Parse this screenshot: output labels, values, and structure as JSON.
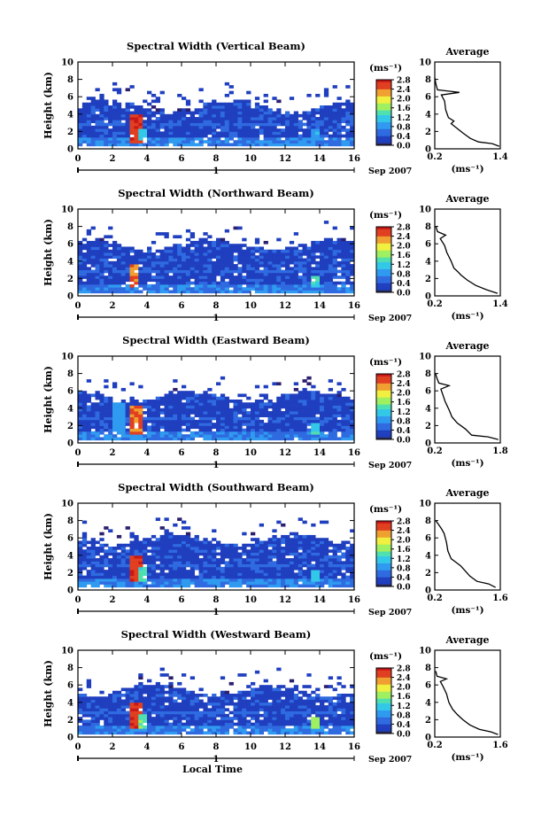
{
  "figure": {
    "x_axis_title": "Local Time",
    "date_label": "Sep 2007",
    "day_marker": "1",
    "colorbar_unit": "(ms⁻¹)",
    "average_title": "Average",
    "colors": {
      "scale": [
        "#2b1f6e",
        "#1f3fbf",
        "#2f6ae0",
        "#2f9af0",
        "#33c8e8",
        "#4fe0b0",
        "#9ff060",
        "#f0f040",
        "#f0a030",
        "#e04020",
        "#c81818"
      ],
      "low": "#2a2a55",
      "profile": "#000000"
    }
  },
  "chart_data": [
    {
      "type": "heatmap",
      "title": "Spectral Width (Vertical Beam)",
      "xlabel": "",
      "ylabel": "Height (km)",
      "xlim": [
        0,
        16
      ],
      "ylim": [
        0,
        10
      ],
      "xticks": [
        "0",
        "2",
        "4",
        "6",
        "8",
        "10",
        "12",
        "14",
        "16"
      ],
      "yticks": [
        "0",
        "2",
        "4",
        "6",
        "8",
        "10"
      ],
      "colorbar": {
        "label": "(ms⁻¹)",
        "range": [
          0.0,
          2.8
        ],
        "ticks": [
          "0.0",
          "0.4",
          "0.8",
          "1.2",
          "1.6",
          "2.0",
          "2.4",
          "2.8"
        ]
      },
      "echo_top_km": 4.5,
      "features": [
        {
          "t": 3.2,
          "z0": 0.5,
          "z1": 3.8,
          "value": 2.8
        },
        {
          "t": 3.6,
          "z0": 0.8,
          "z1": 2.0,
          "value": 1.2
        },
        {
          "t": 13.7,
          "z0": 0.8,
          "z1": 2.0,
          "value": 1.0
        }
      ],
      "average_profile": {
        "xlabel": "(ms⁻¹)",
        "xlim": [
          0.2,
          1.4
        ],
        "xticks": [
          "0.2",
          "1.4"
        ],
        "ylim": [
          0,
          10
        ],
        "yticks": [
          "0",
          "2",
          "4",
          "6",
          "8",
          "10"
        ],
        "points": [
          [
            1.38,
            0.3
          ],
          [
            1.25,
            0.6
          ],
          [
            1.0,
            0.8
          ],
          [
            0.85,
            1.2
          ],
          [
            0.72,
            1.8
          ],
          [
            0.6,
            2.4
          ],
          [
            0.5,
            2.9
          ],
          [
            0.55,
            3.2
          ],
          [
            0.45,
            3.6
          ],
          [
            0.4,
            4.5
          ],
          [
            0.38,
            5.5
          ],
          [
            0.32,
            6.2
          ],
          [
            0.65,
            6.5
          ],
          [
            0.25,
            6.8
          ],
          [
            0.22,
            7.5
          ],
          [
            0.2,
            8.2
          ]
        ]
      }
    },
    {
      "type": "heatmap",
      "title": "Spectral Width (Northward Beam)",
      "xlabel": "",
      "ylabel": "Height (km)",
      "xlim": [
        0,
        16
      ],
      "ylim": [
        0,
        10
      ],
      "xticks": [
        "0",
        "2",
        "4",
        "6",
        "8",
        "10",
        "12",
        "14",
        "16"
      ],
      "yticks": [
        "0",
        "2",
        "4",
        "6",
        "8",
        "10"
      ],
      "colorbar": {
        "label": "(ms⁻¹)",
        "range": [
          0.0,
          2.8
        ],
        "ticks": [
          "0.0",
          "0.4",
          "0.8",
          "1.2",
          "1.6",
          "2.0",
          "2.4",
          "2.8"
        ]
      },
      "echo_top_km": 5.5,
      "features": [
        {
          "t": 3.1,
          "z0": 0.8,
          "z1": 3.5,
          "value": 2.6
        },
        {
          "t": 13.6,
          "z0": 0.8,
          "z1": 2.0,
          "value": 1.4
        }
      ],
      "average_profile": {
        "xlabel": "(ms⁻¹)",
        "xlim": [
          0.2,
          1.4
        ],
        "xticks": [
          "0.2",
          "1.4"
        ],
        "ylim": [
          0,
          10
        ],
        "yticks": [
          "0",
          "2",
          "4",
          "6",
          "8",
          "10"
        ],
        "points": [
          [
            1.35,
            0.3
          ],
          [
            1.15,
            0.7
          ],
          [
            0.95,
            1.2
          ],
          [
            0.8,
            1.8
          ],
          [
            0.68,
            2.4
          ],
          [
            0.62,
            2.8
          ],
          [
            0.55,
            3.2
          ],
          [
            0.5,
            4.0
          ],
          [
            0.42,
            5.0
          ],
          [
            0.38,
            5.8
          ],
          [
            0.3,
            6.6
          ],
          [
            0.4,
            7.0
          ],
          [
            0.25,
            7.4
          ],
          [
            0.22,
            8.0
          ]
        ]
      }
    },
    {
      "type": "heatmap",
      "title": "Spectral Width (Eastward Beam)",
      "xlabel": "",
      "ylabel": "Height (km)",
      "xlim": [
        0,
        16
      ],
      "ylim": [
        0,
        10
      ],
      "xticks": [
        "0",
        "2",
        "4",
        "6",
        "8",
        "10",
        "12",
        "14",
        "16"
      ],
      "yticks": [
        "0",
        "2",
        "4",
        "6",
        "8",
        "10"
      ],
      "colorbar": {
        "label": "(ms⁻¹)",
        "range": [
          0.0,
          2.8
        ],
        "ticks": [
          "0.0",
          "0.4",
          "0.8",
          "1.2",
          "1.6",
          "2.0",
          "2.4",
          "2.8"
        ]
      },
      "echo_top_km": 5.0,
      "features": [
        {
          "t": 2.2,
          "z0": 0.8,
          "z1": 4.5,
          "value": 1.0
        },
        {
          "t": 3.2,
          "z0": 1.0,
          "z1": 4.0,
          "value": 2.6
        },
        {
          "t": 13.7,
          "z0": 0.8,
          "z1": 2.0,
          "value": 1.4
        }
      ],
      "average_profile": {
        "xlabel": "(ms⁻¹)",
        "xlim": [
          0.2,
          1.8
        ],
        "xticks": [
          "0.2",
          "1.8"
        ],
        "ylim": [
          0,
          10
        ],
        "yticks": [
          "0",
          "2",
          "4",
          "6",
          "8",
          "10"
        ],
        "points": [
          [
            1.75,
            0.4
          ],
          [
            1.5,
            0.7
          ],
          [
            1.1,
            0.9
          ],
          [
            0.95,
            1.6
          ],
          [
            0.75,
            2.3
          ],
          [
            0.62,
            3.0
          ],
          [
            0.55,
            3.8
          ],
          [
            0.45,
            4.8
          ],
          [
            0.4,
            5.5
          ],
          [
            0.35,
            6.2
          ],
          [
            0.55,
            6.6
          ],
          [
            0.3,
            6.9
          ],
          [
            0.25,
            7.5
          ],
          [
            0.22,
            8.0
          ]
        ]
      }
    },
    {
      "type": "heatmap",
      "title": "Spectral Width (Southward Beam)",
      "xlabel": "",
      "ylabel": "Height (km)",
      "xlim": [
        0,
        16
      ],
      "ylim": [
        0,
        10
      ],
      "xticks": [
        "0",
        "2",
        "4",
        "6",
        "8",
        "10",
        "12",
        "14",
        "16"
      ],
      "yticks": [
        "0",
        "2",
        "4",
        "6",
        "8",
        "10"
      ],
      "colorbar": {
        "label": "(ms⁻¹)",
        "range": [
          0.0,
          2.8
        ],
        "ticks": [
          "0.0",
          "0.4",
          "0.8",
          "1.2",
          "1.6",
          "2.0",
          "2.4",
          "2.8"
        ]
      },
      "echo_top_km": 5.5,
      "features": [
        {
          "t": 3.2,
          "z0": 0.8,
          "z1": 3.8,
          "value": 2.8
        },
        {
          "t": 3.6,
          "z0": 1.0,
          "z1": 2.5,
          "value": 1.4
        },
        {
          "t": 13.6,
          "z0": 0.8,
          "z1": 2.0,
          "value": 1.2
        }
      ],
      "average_profile": {
        "xlabel": "(ms⁻¹)",
        "xlim": [
          0.2,
          1.6
        ],
        "xticks": [
          "0.2",
          "1.6"
        ],
        "ylim": [
          0,
          10
        ],
        "yticks": [
          "0",
          "2",
          "4",
          "6",
          "8",
          "10"
        ],
        "points": [
          [
            1.5,
            0.3
          ],
          [
            1.35,
            0.7
          ],
          [
            1.1,
            1.0
          ],
          [
            0.95,
            1.6
          ],
          [
            0.85,
            2.2
          ],
          [
            0.75,
            2.8
          ],
          [
            0.65,
            3.2
          ],
          [
            0.55,
            3.6
          ],
          [
            0.48,
            4.5
          ],
          [
            0.45,
            5.5
          ],
          [
            0.4,
            6.5
          ],
          [
            0.35,
            7.0
          ],
          [
            0.3,
            7.4
          ],
          [
            0.22,
            8.0
          ]
        ]
      }
    },
    {
      "type": "heatmap",
      "title": "Spectral Width (Westward Beam)",
      "xlabel": "Local Time",
      "ylabel": "Height (km)",
      "xlim": [
        0,
        16
      ],
      "ylim": [
        0,
        10
      ],
      "xticks": [
        "0",
        "2",
        "4",
        "6",
        "8",
        "10",
        "12",
        "14",
        "16"
      ],
      "yticks": [
        "0",
        "2",
        "4",
        "6",
        "8",
        "10"
      ],
      "colorbar": {
        "label": "(ms⁻¹)",
        "range": [
          0.0,
          2.8
        ],
        "ticks": [
          "0.0",
          "0.4",
          "0.8",
          "1.2",
          "1.6",
          "2.0",
          "2.4",
          "2.8"
        ]
      },
      "echo_top_km": 5.0,
      "features": [
        {
          "t": 3.2,
          "z0": 0.8,
          "z1": 3.8,
          "value": 2.8
        },
        {
          "t": 3.6,
          "z0": 1.0,
          "z1": 2.5,
          "value": 1.6
        },
        {
          "t": 13.7,
          "z0": 0.8,
          "z1": 2.0,
          "value": 1.8
        }
      ],
      "average_profile": {
        "xlabel": "(ms⁻¹)",
        "xlim": [
          0.2,
          1.6
        ],
        "xticks": [
          "0.2",
          "1.6"
        ],
        "ylim": [
          0,
          10
        ],
        "yticks": [
          "0",
          "2",
          "4",
          "6",
          "8",
          "10"
        ],
        "points": [
          [
            1.55,
            0.3
          ],
          [
            1.4,
            0.6
          ],
          [
            1.15,
            0.9
          ],
          [
            0.95,
            1.4
          ],
          [
            0.8,
            2.0
          ],
          [
            0.68,
            2.6
          ],
          [
            0.58,
            3.2
          ],
          [
            0.5,
            4.0
          ],
          [
            0.45,
            5.0
          ],
          [
            0.38,
            5.8
          ],
          [
            0.32,
            6.4
          ],
          [
            0.45,
            6.7
          ],
          [
            0.25,
            7.0
          ],
          [
            0.22,
            7.6
          ]
        ]
      }
    }
  ]
}
